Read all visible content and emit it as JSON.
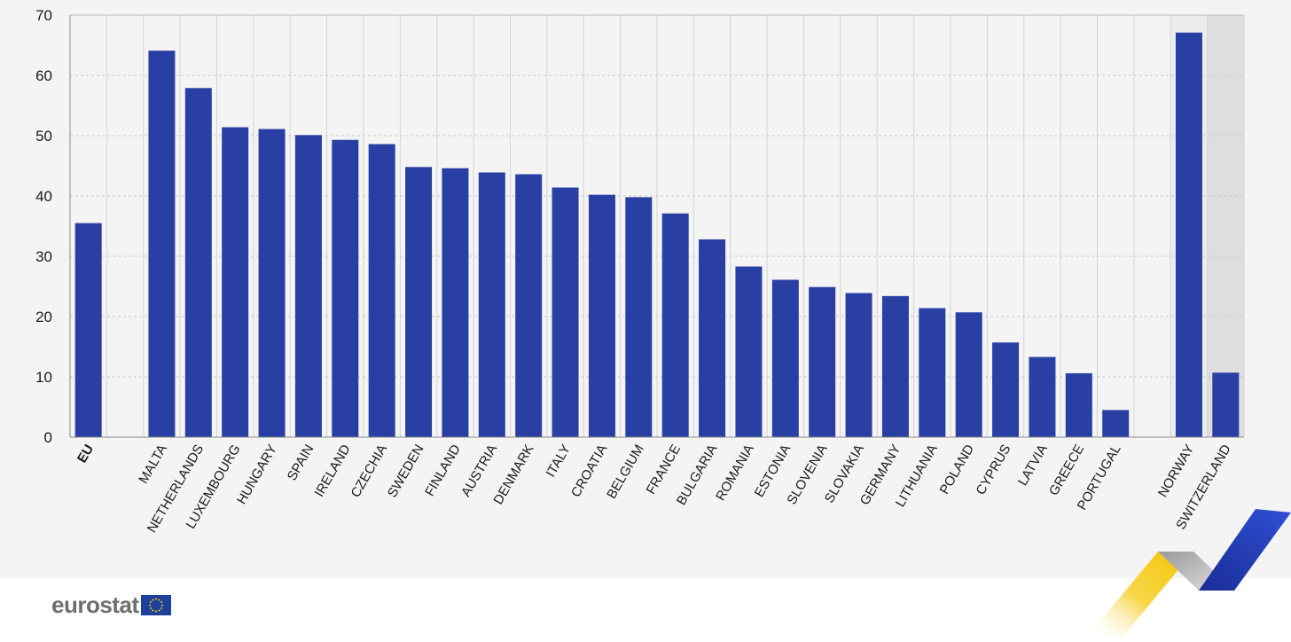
{
  "chart_data": {
    "type": "bar",
    "ylim": [
      0,
      70
    ],
    "yticks": [
      "0",
      "10",
      "20",
      "30",
      "40",
      "50",
      "60",
      "70"
    ],
    "grid": true,
    "categories": [
      "EU",
      "MALTA",
      "NETHERLANDS",
      "LUXEMBOURG",
      "HUNGARY",
      "SPAIN",
      "IRELAND",
      "CZECHIA",
      "SWEDEN",
      "FINLAND",
      "AUSTRIA",
      "DENMARK",
      "ITALY",
      "CROATIA",
      "BELGIUM",
      "FRANCE",
      "BULGARIA",
      "ROMANIA",
      "ESTONIA",
      "SLOVENIA",
      "SLOVAKIA",
      "GERMANY",
      "LITHUANIA",
      "POLAND",
      "CYPRUS",
      "LATVIA",
      "GREECE",
      "PORTUGAL",
      "NORWAY",
      "SWITZERLAND"
    ],
    "values": [
      35.5,
      64.1,
      57.9,
      51.4,
      51.1,
      50.1,
      49.3,
      48.6,
      44.8,
      44.6,
      43.9,
      43.6,
      41.4,
      40.2,
      39.8,
      37.1,
      32.8,
      28.3,
      26.1,
      24.9,
      23.9,
      23.4,
      21.4,
      20.7,
      15.7,
      13.3,
      10.6,
      4.5,
      67.1,
      10.7
    ],
    "groups": [
      "eu",
      "member",
      "member",
      "member",
      "member",
      "member",
      "member",
      "member",
      "member",
      "member",
      "member",
      "member",
      "member",
      "member",
      "member",
      "member",
      "member",
      "member",
      "member",
      "member",
      "member",
      "member",
      "member",
      "member",
      "member",
      "member",
      "member",
      "member",
      "efta",
      "efta"
    ],
    "colors": {
      "bar": "#2a3fa3",
      "panel": "#f4f4f4",
      "grid": "#c8c8c8",
      "efta_band_1": "#ececec",
      "efta_band_2": "#dedede",
      "axis_text": "#1a1a1a"
    }
  },
  "branding": {
    "logo_text": "eurostat",
    "flag_icon": "eu-flag-icon",
    "deco_icon": "eurostat-chevron-decoration-icon"
  }
}
